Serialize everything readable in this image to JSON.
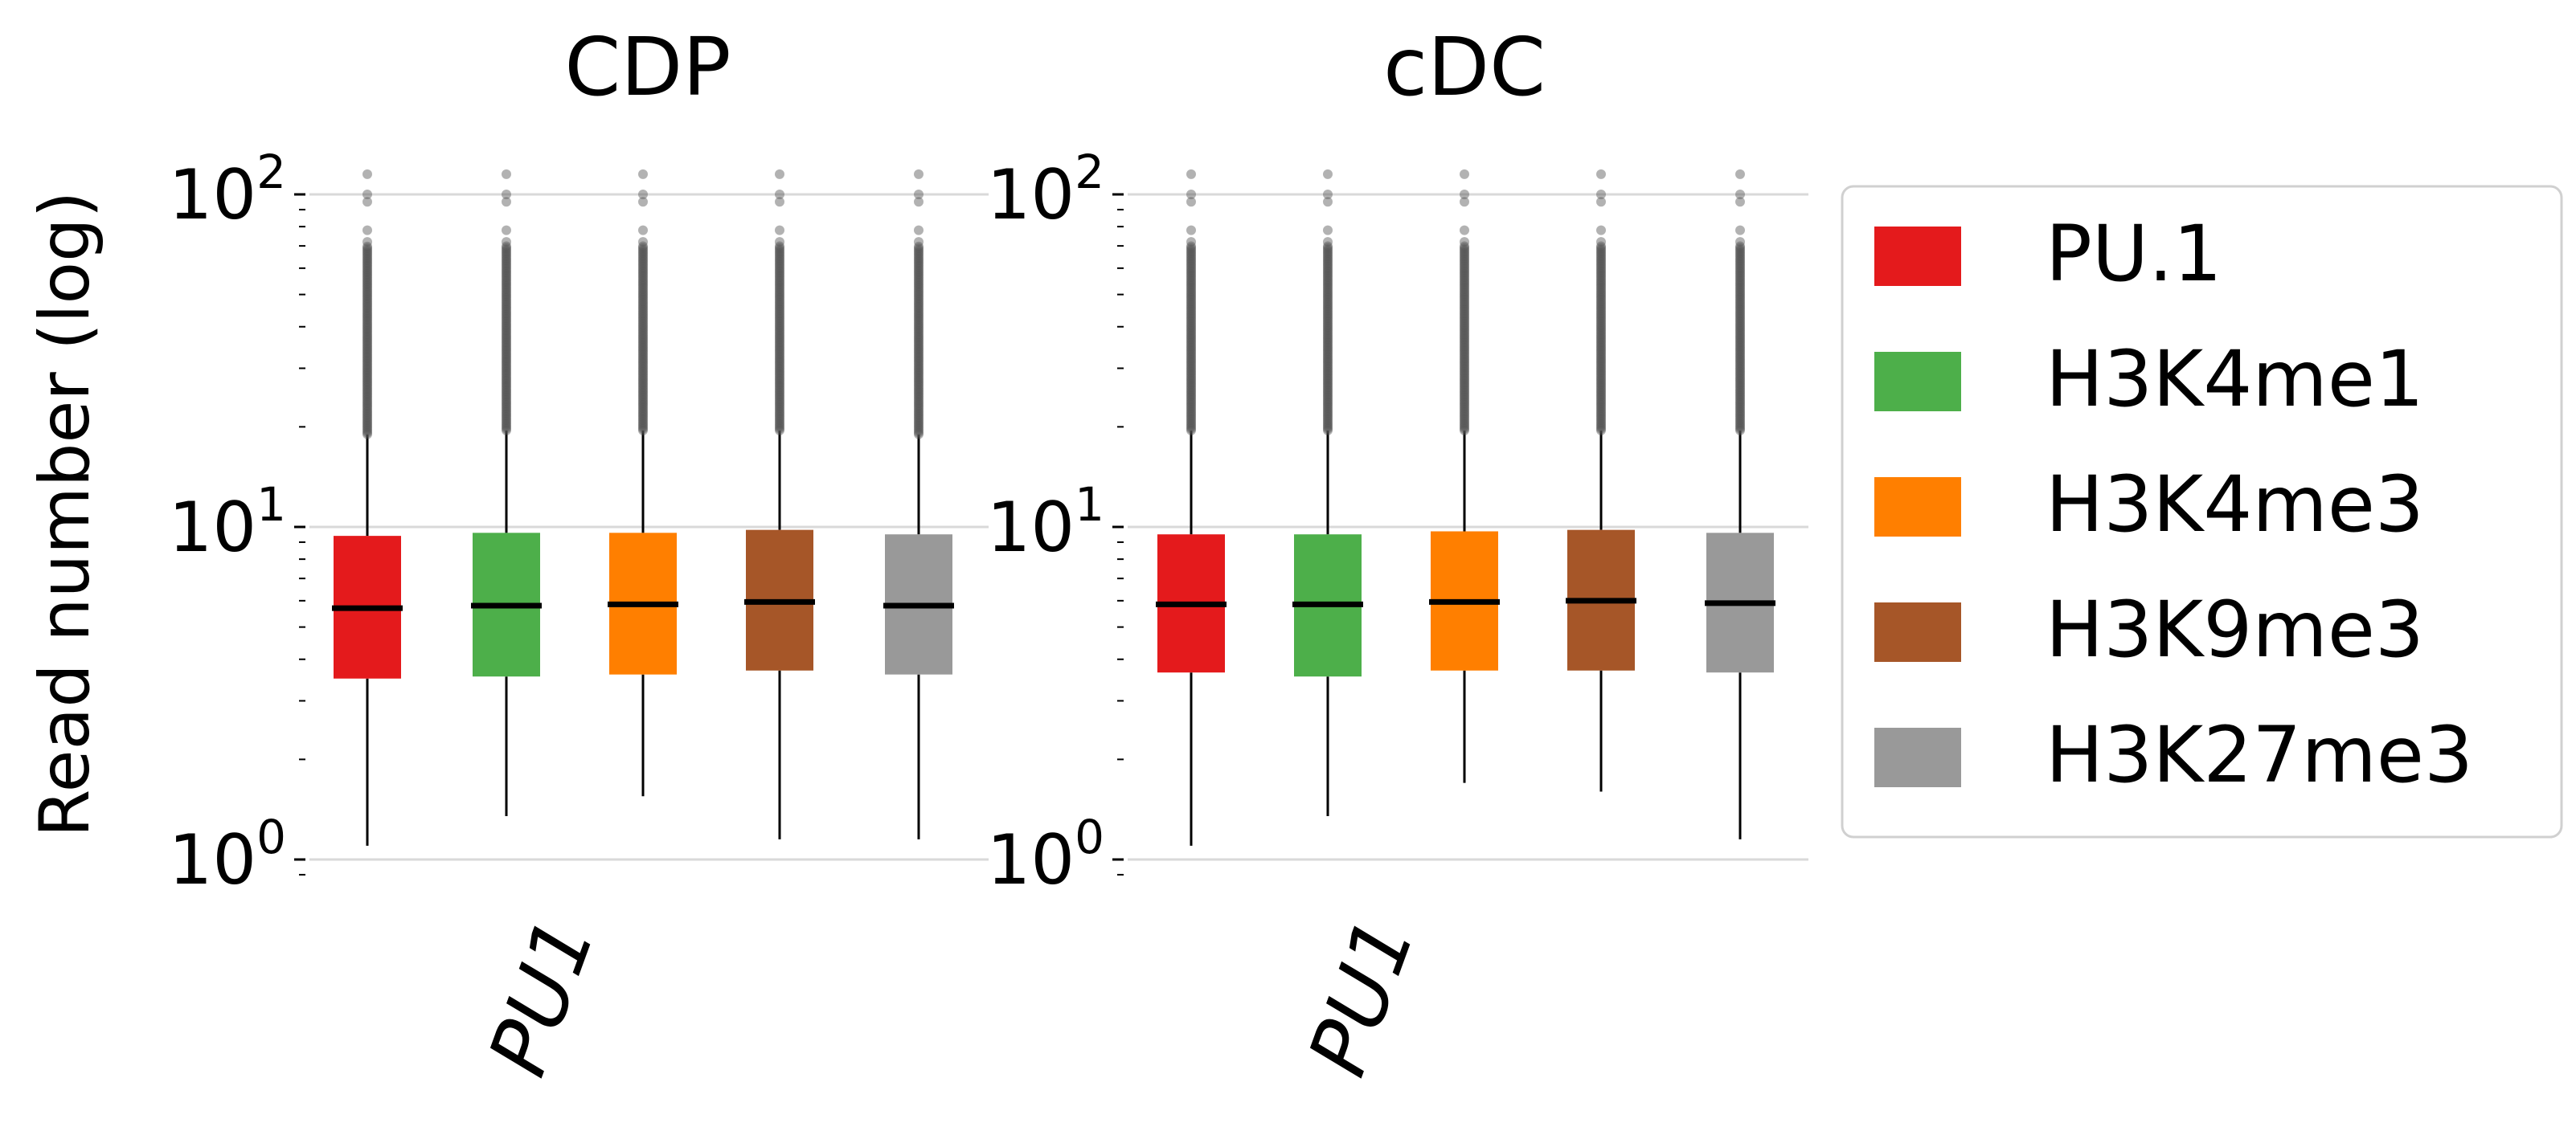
{
  "chart_data": {
    "type": "box",
    "ylabel": "Read number (log)",
    "yscale": "log",
    "ylim": [
      1,
      100
    ],
    "yticks": [
      {
        "base": "10",
        "exp": "0",
        "value": 1
      },
      {
        "base": "10",
        "exp": "1",
        "value": 10
      },
      {
        "base": "10",
        "exp": "2",
        "value": 100
      }
    ],
    "grid": "y-major",
    "legend_position": "right",
    "series": [
      {
        "name": "PU.1",
        "color": "#e41a1c"
      },
      {
        "name": "H3K4me1",
        "color": "#4daf4a"
      },
      {
        "name": "H3K4me3",
        "color": "#ff7f00"
      },
      {
        "name": "H3K9me3",
        "color": "#a65628"
      },
      {
        "name": "H3K27me3",
        "color": "#999999"
      }
    ],
    "panels": [
      {
        "title": "CDP",
        "category": "PU1",
        "boxes": [
          {
            "series": "PU.1",
            "whisker_low": 1.1,
            "q1": 3.5,
            "median": 5.7,
            "q3": 9.4,
            "whisker_high": 19,
            "flier_max": 115
          },
          {
            "series": "H3K4me1",
            "whisker_low": 1.35,
            "q1": 3.55,
            "median": 5.8,
            "q3": 9.6,
            "whisker_high": 19.5,
            "flier_max": 115
          },
          {
            "series": "H3K4me3",
            "whisker_low": 1.55,
            "q1": 3.6,
            "median": 5.85,
            "q3": 9.6,
            "whisker_high": 19.5,
            "flier_max": 115
          },
          {
            "series": "H3K9me3",
            "whisker_low": 1.15,
            "q1": 3.7,
            "median": 5.95,
            "q3": 9.8,
            "whisker_high": 19.5,
            "flier_max": 115
          },
          {
            "series": "H3K27me3",
            "whisker_low": 1.15,
            "q1": 3.6,
            "median": 5.8,
            "q3": 9.5,
            "whisker_high": 19,
            "flier_max": 115
          }
        ]
      },
      {
        "title": "cDC",
        "category": "PU1",
        "boxes": [
          {
            "series": "PU.1",
            "whisker_low": 1.1,
            "q1": 3.65,
            "median": 5.85,
            "q3": 9.5,
            "whisker_high": 19.5,
            "flier_max": 115
          },
          {
            "series": "H3K4me1",
            "whisker_low": 1.35,
            "q1": 3.55,
            "median": 5.85,
            "q3": 9.5,
            "whisker_high": 19.5,
            "flier_max": 115
          },
          {
            "series": "H3K4me3",
            "whisker_low": 1.7,
            "q1": 3.7,
            "median": 5.95,
            "q3": 9.7,
            "whisker_high": 19.5,
            "flier_max": 115
          },
          {
            "series": "H3K9me3",
            "whisker_low": 1.6,
            "q1": 3.7,
            "median": 6.0,
            "q3": 9.8,
            "whisker_high": 19.5,
            "flier_max": 115
          },
          {
            "series": "H3K27me3",
            "whisker_low": 1.15,
            "q1": 3.65,
            "median": 5.9,
            "q3": 9.6,
            "whisker_high": 19.5,
            "flier_max": 115
          }
        ]
      }
    ]
  }
}
